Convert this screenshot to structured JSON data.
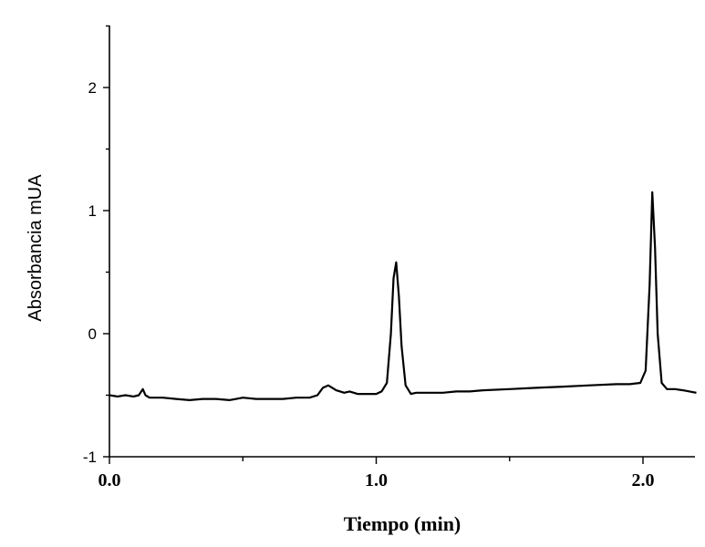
{
  "chart_data": {
    "type": "line",
    "title": "",
    "xlabel": "Tiempo (min)",
    "ylabel": "Absorbancia mUA",
    "xlim": [
      0.0,
      2.2
    ],
    "ylim": [
      -1,
      2.5
    ],
    "x_ticks": [
      0.0,
      1.0,
      2.0
    ],
    "x_tick_labels": [
      "0.0",
      "1.0",
      "2.0"
    ],
    "y_ticks": [
      -1,
      0,
      1,
      2
    ],
    "y_tick_labels": [
      "-1",
      "0",
      "1",
      "2"
    ],
    "grid": false,
    "legend": "none",
    "line_color": "#000000",
    "series": [
      {
        "x": [
          0.0,
          0.03,
          0.06,
          0.09,
          0.11,
          0.125,
          0.135,
          0.15,
          0.2,
          0.25,
          0.3,
          0.35,
          0.4,
          0.45,
          0.5,
          0.55,
          0.6,
          0.65,
          0.7,
          0.75,
          0.78,
          0.8,
          0.82,
          0.85,
          0.88,
          0.9,
          0.93,
          0.95,
          1.0,
          1.02,
          1.04,
          1.055,
          1.065,
          1.075,
          1.085,
          1.095,
          1.11,
          1.13,
          1.15,
          1.2,
          1.25,
          1.3,
          1.35,
          1.4,
          1.5,
          1.6,
          1.7,
          1.8,
          1.9,
          1.95,
          1.99,
          2.01,
          2.025,
          2.035,
          2.045,
          2.055,
          2.07,
          2.09,
          2.12,
          2.15,
          2.2
        ],
        "y": [
          -0.5,
          -0.51,
          -0.5,
          -0.51,
          -0.5,
          -0.45,
          -0.5,
          -0.52,
          -0.52,
          -0.53,
          -0.54,
          -0.53,
          -0.53,
          -0.54,
          -0.52,
          -0.53,
          -0.53,
          -0.53,
          -0.52,
          -0.52,
          -0.5,
          -0.44,
          -0.42,
          -0.46,
          -0.48,
          -0.47,
          -0.49,
          -0.49,
          -0.49,
          -0.47,
          -0.4,
          0.0,
          0.45,
          0.58,
          0.3,
          -0.1,
          -0.42,
          -0.49,
          -0.48,
          -0.48,
          -0.48,
          -0.47,
          -0.47,
          -0.46,
          -0.45,
          -0.44,
          -0.43,
          -0.42,
          -0.41,
          -0.41,
          -0.4,
          -0.3,
          0.4,
          1.15,
          0.7,
          0.0,
          -0.4,
          -0.45,
          -0.45,
          -0.46,
          -0.48
        ]
      }
    ]
  }
}
